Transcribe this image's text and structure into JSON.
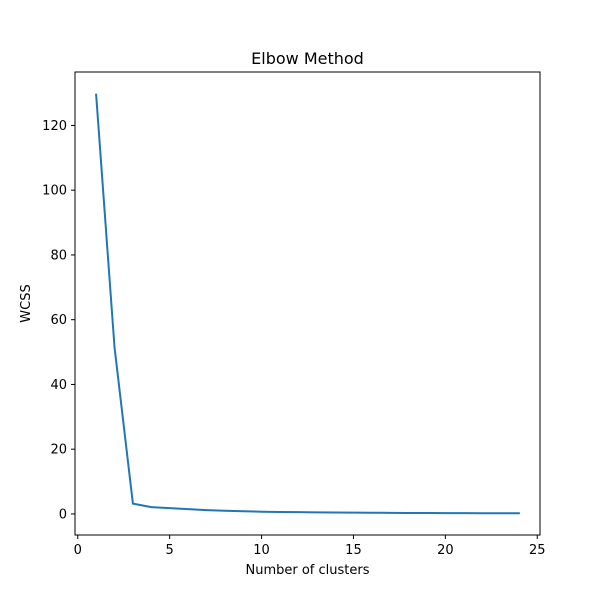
{
  "chart_data": {
    "type": "line",
    "title": "Elbow Method",
    "xlabel": "Number of clusters",
    "ylabel": "WCSS",
    "xlim": [
      -0.15,
      25.15
    ],
    "ylim": [
      -6.5,
      136.5
    ],
    "xticks": [
      0,
      5,
      10,
      15,
      20,
      25
    ],
    "yticks": [
      0,
      20,
      40,
      60,
      80,
      100,
      120
    ],
    "grid": false,
    "series": [
      {
        "color": "#1f77b4",
        "x": [
          1,
          2,
          3,
          4,
          5,
          6,
          7,
          8,
          9,
          10,
          11,
          12,
          13,
          14,
          15,
          16,
          17,
          18,
          19,
          20,
          21,
          22,
          23,
          24
        ],
        "values": [
          129.5,
          51.5,
          3.2,
          2.1,
          1.8,
          1.5,
          1.2,
          1.0,
          0.85,
          0.7,
          0.6,
          0.55,
          0.5,
          0.45,
          0.4,
          0.37,
          0.34,
          0.31,
          0.29,
          0.27,
          0.25,
          0.23,
          0.21,
          0.2
        ]
      }
    ]
  }
}
